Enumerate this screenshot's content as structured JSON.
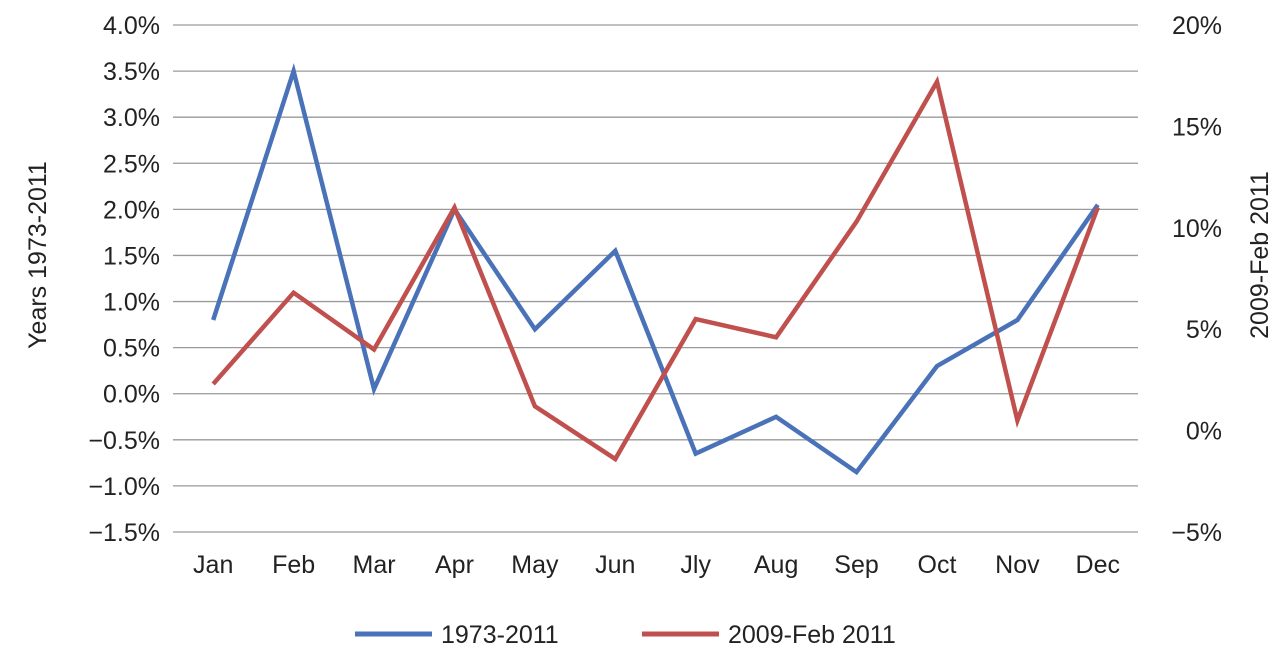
{
  "chart_data": {
    "type": "line",
    "categories": [
      "Jan",
      "Feb",
      "Mar",
      "Apr",
      "May",
      "Jun",
      "Jly",
      "Aug",
      "Sep",
      "Oct",
      "Nov",
      "Dec"
    ],
    "y_left": {
      "label": "Years 1973-2011",
      "range": [
        -1.5,
        4.0
      ],
      "ticks": [
        -1.5,
        -1.0,
        -0.5,
        0.0,
        0.5,
        1.0,
        1.5,
        2.0,
        2.5,
        3.0,
        3.5,
        4.0
      ],
      "tick_labels": [
        "−1.5%",
        "−1.0%",
        "−0.5%",
        "0.0%",
        "0.5%",
        "1.0%",
        "1.5%",
        "2.0%",
        "2.5%",
        "3.0%",
        "3.5%",
        "4.0%"
      ]
    },
    "y_right": {
      "label": "2009-Feb 2011",
      "range": [
        -5,
        20
      ],
      "ticks": [
        -5,
        0,
        5,
        10,
        15,
        20
      ],
      "tick_labels": [
        "−5%",
        "0%",
        "5%",
        "10%",
        "15%",
        "20%"
      ]
    },
    "series": [
      {
        "name": "1973-2011",
        "axis": "left",
        "color": "#4a72b8",
        "values": [
          0.8,
          3.5,
          0.05,
          2.0,
          0.7,
          1.55,
          -0.65,
          -0.25,
          -0.85,
          0.3,
          0.8,
          2.05
        ]
      },
      {
        "name": "2009-Feb 2011",
        "axis": "right",
        "color": "#c0504d",
        "values": [
          2.3,
          6.8,
          4.0,
          11.0,
          1.2,
          -1.4,
          5.5,
          4.6,
          10.3,
          17.2,
          0.5,
          11.0
        ]
      }
    ],
    "grid": true,
    "legend_position": "bottom-center"
  }
}
